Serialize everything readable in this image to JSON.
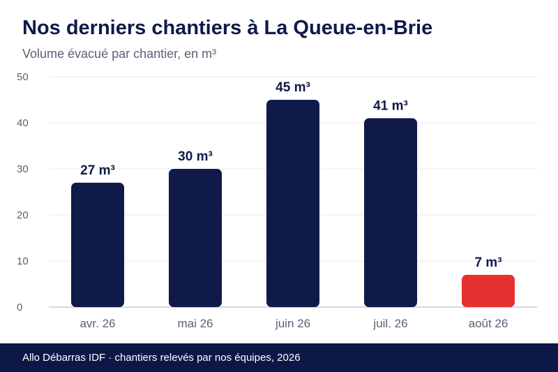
{
  "header": {
    "title": "Nos derniers chantiers à La Queue-en-Brie",
    "subtitle": "Volume évacué par chantier, en m³"
  },
  "footer": {
    "text": "Allo Débarras IDF · chantiers relevés par nos équipes, 2026"
  },
  "colors": {
    "bar": "#0f1a4a",
    "highlight": "#e5312f",
    "grid": "#e8e8ee",
    "axis": "#c9c9d6"
  },
  "chart_data": {
    "type": "bar",
    "categories": [
      "avr. 26",
      "mai 26",
      "juin 26",
      "juil. 26",
      "août 26"
    ],
    "values": [
      27,
      30,
      45,
      41,
      7
    ],
    "data_labels": [
      "27 m³",
      "30 m³",
      "45 m³",
      "41 m³",
      "7 m³"
    ],
    "highlight_index": 4,
    "yticks": [
      0,
      10,
      20,
      30,
      40,
      50
    ],
    "ylim": [
      0,
      50
    ],
    "grid": true,
    "legend": "none"
  }
}
